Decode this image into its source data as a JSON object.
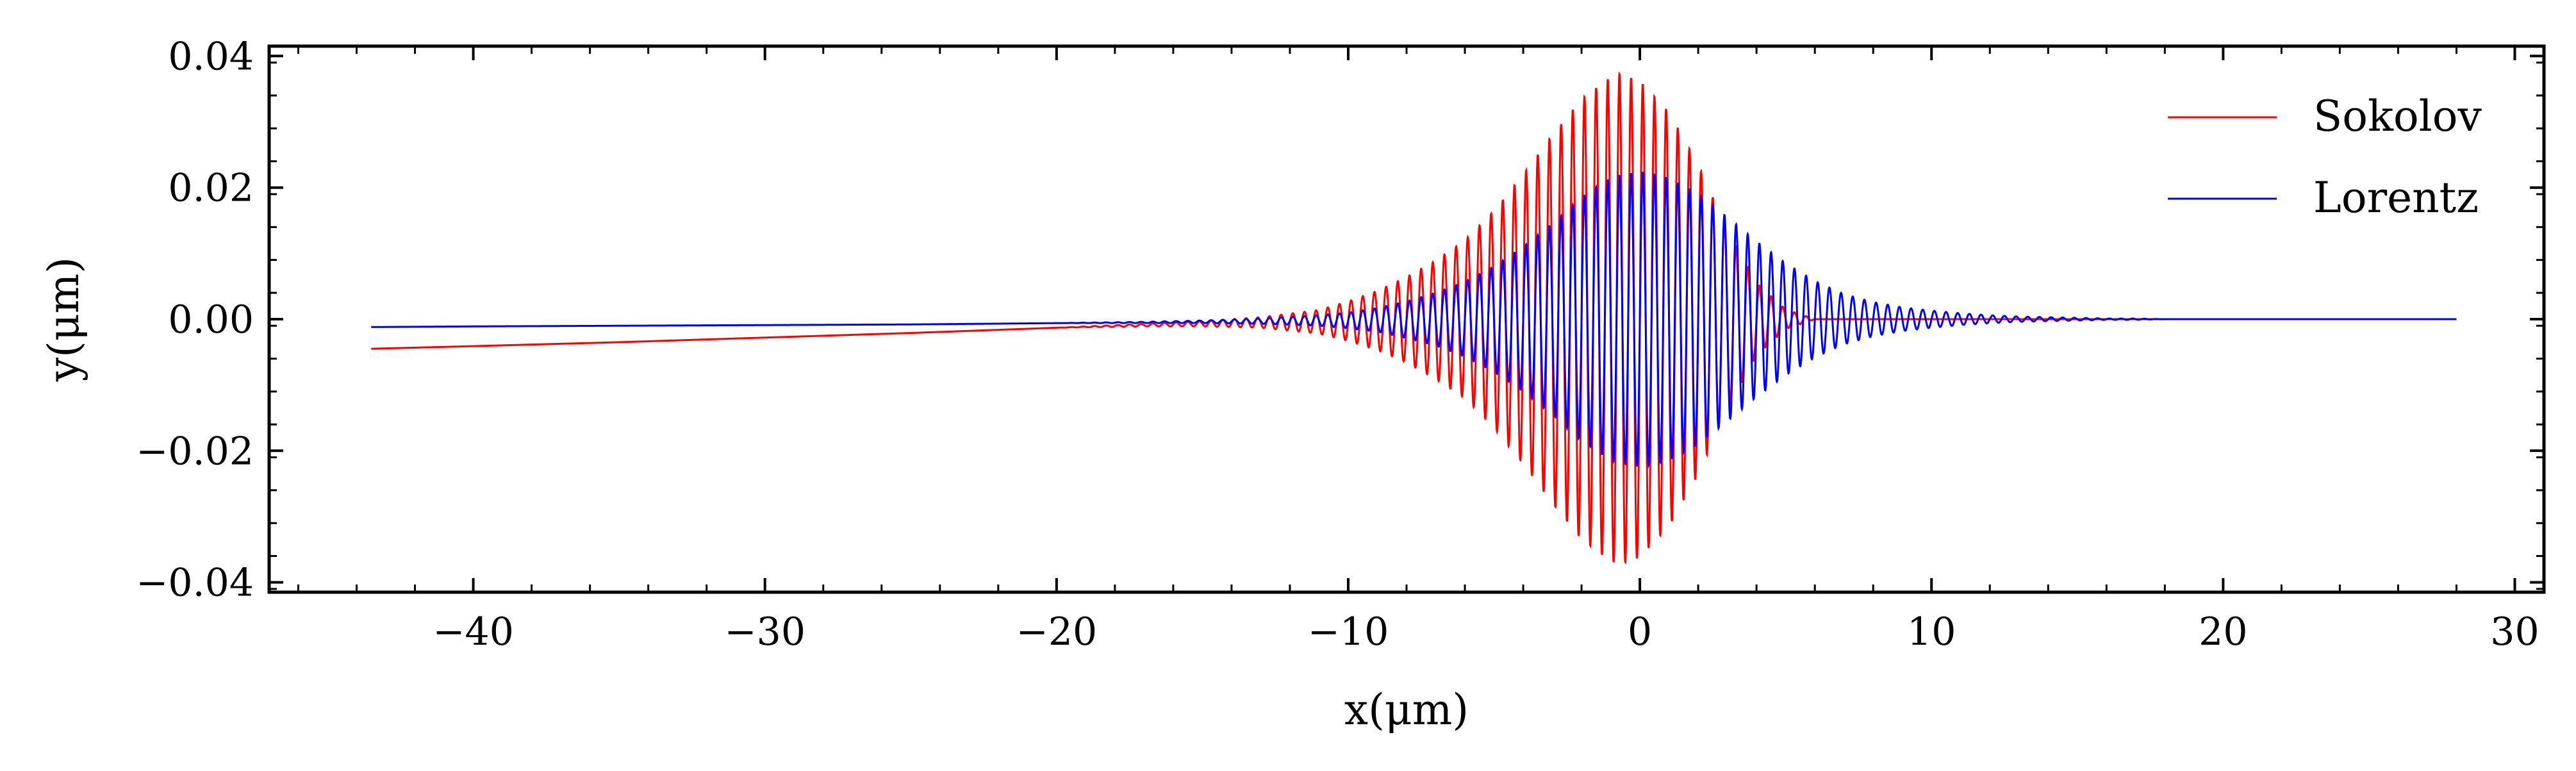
{
  "chart_data": {
    "type": "line",
    "title": "",
    "xlabel": "x(μm)",
    "ylabel": "y(μm)",
    "xlim": [
      -47,
      31
    ],
    "ylim": [
      -0.0415,
      0.0415
    ],
    "x_ticks": [
      -40,
      -30,
      -20,
      -10,
      0,
      10,
      20,
      30
    ],
    "x_tick_labels": [
      "−40",
      "−30",
      "−20",
      "−10",
      "0",
      "10",
      "20",
      "30"
    ],
    "y_ticks": [
      -0.04,
      -0.02,
      0.0,
      0.02,
      0.04
    ],
    "y_tick_labels": [
      "−0.04",
      "−0.02",
      "0.00",
      "0.02",
      "0.04"
    ],
    "grid": false,
    "legend_position": "top-right",
    "series": [
      {
        "name": "Sokolov",
        "color": "#ff0000",
        "x": [
          -43.5,
          -40,
          -35,
          -30,
          -25,
          -20,
          -17,
          -15,
          -13,
          -11,
          -10,
          -9,
          -8,
          -7,
          -6,
          -5,
          -4,
          -3,
          -2,
          -1,
          -0.7,
          0,
          1,
          2,
          3,
          4,
          5,
          6,
          8,
          10,
          15,
          20,
          25,
          28
        ],
        "y_center": [
          -0.0045,
          -0.0041,
          -0.0035,
          -0.0028,
          -0.0021,
          -0.0013,
          -0.0009,
          -0.0007,
          -0.0005,
          -0.0004,
          -0.0003,
          -0.0002,
          -0.0001,
          -0.0001,
          0.0,
          0.0,
          0.0,
          0.0,
          0.0,
          0.0,
          0.0,
          0.0,
          0.0,
          0.0,
          0.0,
          0.0,
          0.0,
          0.0,
          0.0,
          0.0,
          0.0,
          0.0,
          0.0,
          0.0
        ],
        "amplitude": [
          0.0,
          0.0,
          0.0,
          0.0,
          0.0,
          0.0,
          0.0002,
          0.0004,
          0.0008,
          0.0018,
          0.003,
          0.0045,
          0.0065,
          0.009,
          0.012,
          0.0165,
          0.022,
          0.028,
          0.0335,
          0.0368,
          0.0373,
          0.0362,
          0.0315,
          0.0235,
          0.0135,
          0.0055,
          0.0015,
          0.0,
          0.0,
          0.0,
          0.0,
          0.0,
          0.0,
          0.0
        ]
      },
      {
        "name": "Lorentz",
        "color": "#0000ff",
        "x": [
          -43.5,
          -40,
          -35,
          -30,
          -25,
          -20,
          -17,
          -15,
          -13,
          -11,
          -10,
          -9,
          -8,
          -7,
          -6,
          -5,
          -4,
          -3,
          -2,
          -1,
          0,
          1,
          2,
          3,
          4,
          5,
          6,
          7,
          8,
          9,
          10,
          11,
          12,
          13,
          14,
          15,
          16,
          17,
          18,
          20,
          25,
          28
        ],
        "y_center": [
          -0.0012,
          -0.0011,
          -0.001,
          -0.0009,
          -0.0008,
          -0.0006,
          -0.0005,
          -0.0004,
          -0.0003,
          -0.0002,
          -0.0002,
          -0.0001,
          -0.0001,
          0.0,
          0.0,
          0.0,
          0.0,
          0.0,
          0.0,
          0.0,
          0.0,
          0.0,
          0.0,
          0.0,
          0.0,
          0.0,
          0.0,
          0.0,
          0.0,
          0.0,
          0.0,
          0.0,
          0.0,
          0.0,
          0.0,
          0.0,
          0.0,
          0.0,
          0.0,
          0.0,
          0.0,
          0.0
        ],
        "amplitude": [
          0.0,
          0.0,
          0.0,
          0.0,
          0.0,
          0.0,
          0.0001,
          0.0002,
          0.0004,
          0.0008,
          0.0012,
          0.0018,
          0.0028,
          0.004,
          0.0057,
          0.008,
          0.011,
          0.0145,
          0.0185,
          0.0215,
          0.0225,
          0.0215,
          0.019,
          0.0155,
          0.0118,
          0.0085,
          0.0058,
          0.0038,
          0.0026,
          0.0018,
          0.0013,
          0.0009,
          0.0006,
          0.0004,
          0.0003,
          0.0002,
          0.0001,
          0.0001,
          0.0,
          0.0,
          0.0,
          0.0
        ]
      }
    ]
  }
}
